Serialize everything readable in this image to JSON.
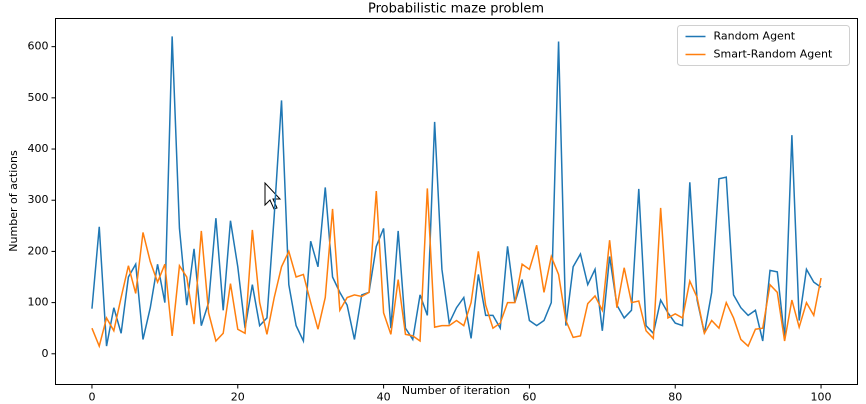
{
  "chart_data": {
    "type": "line",
    "title": "Probabilistic maze problem",
    "x_label": "Number of iteration",
    "y_label": "Number of actions",
    "x": [
      0,
      1,
      2,
      3,
      4,
      5,
      6,
      7,
      8,
      9,
      10,
      11,
      12,
      13,
      14,
      15,
      16,
      17,
      18,
      19,
      20,
      21,
      22,
      23,
      24,
      25,
      26,
      27,
      28,
      29,
      30,
      31,
      32,
      33,
      34,
      35,
      36,
      37,
      38,
      39,
      40,
      41,
      42,
      43,
      44,
      45,
      46,
      47,
      48,
      49,
      50,
      51,
      52,
      53,
      54,
      55,
      56,
      57,
      58,
      59,
      60,
      61,
      62,
      63,
      64,
      65,
      66,
      67,
      68,
      69,
      70,
      71,
      72,
      73,
      74,
      75,
      76,
      77,
      78,
      79,
      80,
      81,
      82,
      83,
      84,
      85,
      86,
      87,
      88,
      89,
      90,
      91,
      92,
      93,
      94,
      95,
      96,
      97,
      98,
      99,
      100
    ],
    "series": [
      {
        "name": "Random Agent",
        "color": "#1f77b4",
        "values": [
          88,
          248,
          15,
          90,
          40,
          150,
          175,
          28,
          90,
          175,
          100,
          620,
          245,
          95,
          205,
          55,
          100,
          265,
          85,
          260,
          170,
          50,
          135,
          55,
          70,
          270,
          495,
          135,
          55,
          25,
          220,
          170,
          325,
          150,
          120,
          95,
          28,
          115,
          120,
          210,
          245,
          50,
          240,
          50,
          28,
          115,
          75,
          453,
          165,
          60,
          90,
          110,
          30,
          155,
          75,
          75,
          50,
          210,
          100,
          145,
          65,
          55,
          65,
          100,
          610,
          55,
          170,
          195,
          135,
          165,
          45,
          190,
          95,
          70,
          85,
          322,
          55,
          40,
          105,
          80,
          60,
          55,
          335,
          105,
          40,
          120,
          342,
          345,
          115,
          90,
          75,
          85,
          25,
          163,
          160,
          30,
          427,
          65,
          165,
          140,
          130
        ]
      },
      {
        "name": "Smart-Random Agent",
        "color": "#ff7f0e",
        "values": [
          50,
          15,
          70,
          45,
          110,
          172,
          118,
          237,
          180,
          140,
          175,
          35,
          172,
          150,
          58,
          240,
          80,
          25,
          40,
          137,
          48,
          40,
          242,
          100,
          38,
          110,
          170,
          200,
          150,
          155,
          100,
          48,
          110,
          283,
          85,
          110,
          115,
          112,
          120,
          318,
          80,
          38,
          145,
          38,
          35,
          25,
          323,
          52,
          55,
          55,
          65,
          55,
          100,
          200,
          95,
          50,
          60,
          100,
          100,
          175,
          165,
          212,
          120,
          190,
          155,
          65,
          32,
          35,
          98,
          113,
          85,
          222,
          90,
          168,
          100,
          103,
          45,
          30,
          285,
          70,
          78,
          70,
          142,
          110,
          40,
          65,
          50,
          100,
          70,
          28,
          15,
          48,
          50,
          135,
          120,
          25,
          105,
          52,
          100,
          75,
          148
        ]
      }
    ],
    "xlim": [
      -5,
      105
    ],
    "ylim": [
      -60,
      655
    ],
    "xticks": [
      0,
      20,
      40,
      60,
      80,
      100
    ],
    "yticks": [
      0,
      100,
      200,
      300,
      400,
      500,
      600
    ],
    "legend": "upper right"
  }
}
